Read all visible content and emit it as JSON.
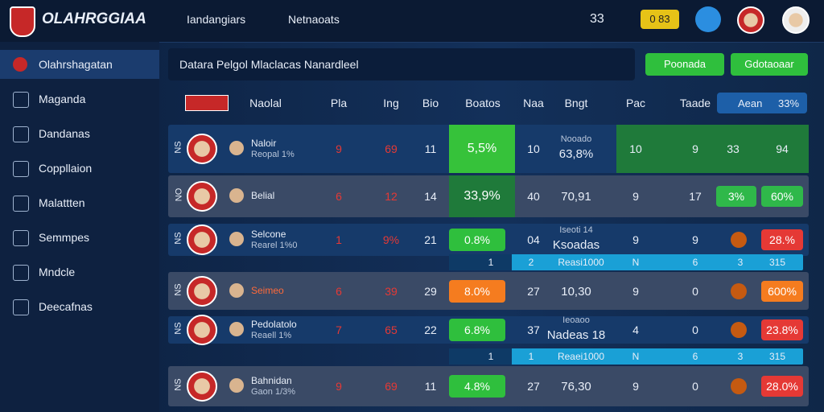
{
  "header": {
    "brand": "OLAHRGGIAA",
    "nav": [
      "Iandangiars",
      "Netnaoats"
    ],
    "count": "33",
    "badge": "0 83"
  },
  "sidebar": [
    "Olahrshagatan",
    "Maganda",
    "Dandanas",
    "Coppllaion",
    "Malattten",
    "Semmpes",
    "Mndcle",
    "Deecafnas"
  ],
  "panel": {
    "title": "Datara Pelgol Mlaclacas Nanardleel",
    "buttons": [
      "Poonada",
      "Gdotaoaar"
    ]
  },
  "table": {
    "columns": [
      "Naolal",
      "Pla",
      "Ing",
      "Bio",
      "Boatos",
      "Naa",
      "Bngt",
      "Pac",
      "Taade"
    ],
    "filter": "Aean",
    "filter_value": "33%",
    "rows": [
      {
        "idx": "NS",
        "name": "Naloir",
        "sub": "Reopal 1%",
        "c1": "9",
        "c2": "69",
        "c3": "11",
        "pct": "5,5%",
        "pct_color": "#36c23a",
        "c5": "10",
        "c6_top": "Nooado",
        "c6": "63,8%",
        "c7": "10",
        "c8": "9",
        "c9": "33",
        "c10": "94",
        "end_color": ""
      },
      {
        "idx": "NO",
        "name": "Belial",
        "sub": "",
        "c1": "6",
        "c2": "12",
        "c3": "14",
        "pct": "33,9%",
        "pct_color": "#1f7a3a",
        "c5": "40",
        "c6_top": "",
        "c6": "70,91",
        "c7": "9",
        "c8": "17",
        "c9": "3%",
        "c10": "60%",
        "end_color": "#2fb84a"
      },
      {
        "idx": "NS",
        "name": "Selcone",
        "sub": "Rearel 1%0",
        "c1": "1",
        "c2": "9%",
        "c3": "21",
        "pct": "0.8%",
        "pct_color": "#2fbf3d",
        "c5": "04",
        "c6_top": "Iseoti 14",
        "c6": "Ksoadas",
        "c7": "9",
        "c8": "9",
        "c9": "",
        "c10": "28.%",
        "end_color": "#e53935",
        "subrow": [
          "1",
          "2",
          "Reasi1000",
          "N",
          "6",
          "3",
          "315"
        ]
      },
      {
        "idx": "NS",
        "name": "Seimeo",
        "sub": "",
        "c1": "6",
        "c2": "39",
        "c3": "29",
        "pct": "8.0%",
        "pct_color": "#f57c1f",
        "c5": "27",
        "c6_top": "",
        "c6": "10,30",
        "c7": "9",
        "c8": "0",
        "c9": "",
        "c10": "600%",
        "end_color": "#f57c1f"
      },
      {
        "idx": "NS",
        "name": "Pedolatolo",
        "sub": "Reaell 1%",
        "c1": "7",
        "c2": "65",
        "c3": "22",
        "pct": "6.8%",
        "pct_color": "#2fbf3d",
        "c5": "37",
        "c6_top": "Ieoaoo",
        "c6": "Nadeas 18",
        "c7": "4",
        "c8": "0",
        "c9": "",
        "c10": "23.8%",
        "end_color": "#e53935",
        "subrow": [
          "1",
          "1",
          "Reaei1000",
          "N",
          "6",
          "3",
          "315"
        ]
      },
      {
        "idx": "NS",
        "name": "Bahnidan",
        "sub": "Gaon 1/3%",
        "c1": "9",
        "c2": "69",
        "c3": "11",
        "pct": "4.8%",
        "pct_color": "#2fbf3d",
        "c5": "27",
        "c6_top": "",
        "c6": "76,30",
        "c7": "9",
        "c8": "0",
        "c9": "",
        "c10": "28.0%",
        "end_color": "#e53935"
      }
    ]
  }
}
